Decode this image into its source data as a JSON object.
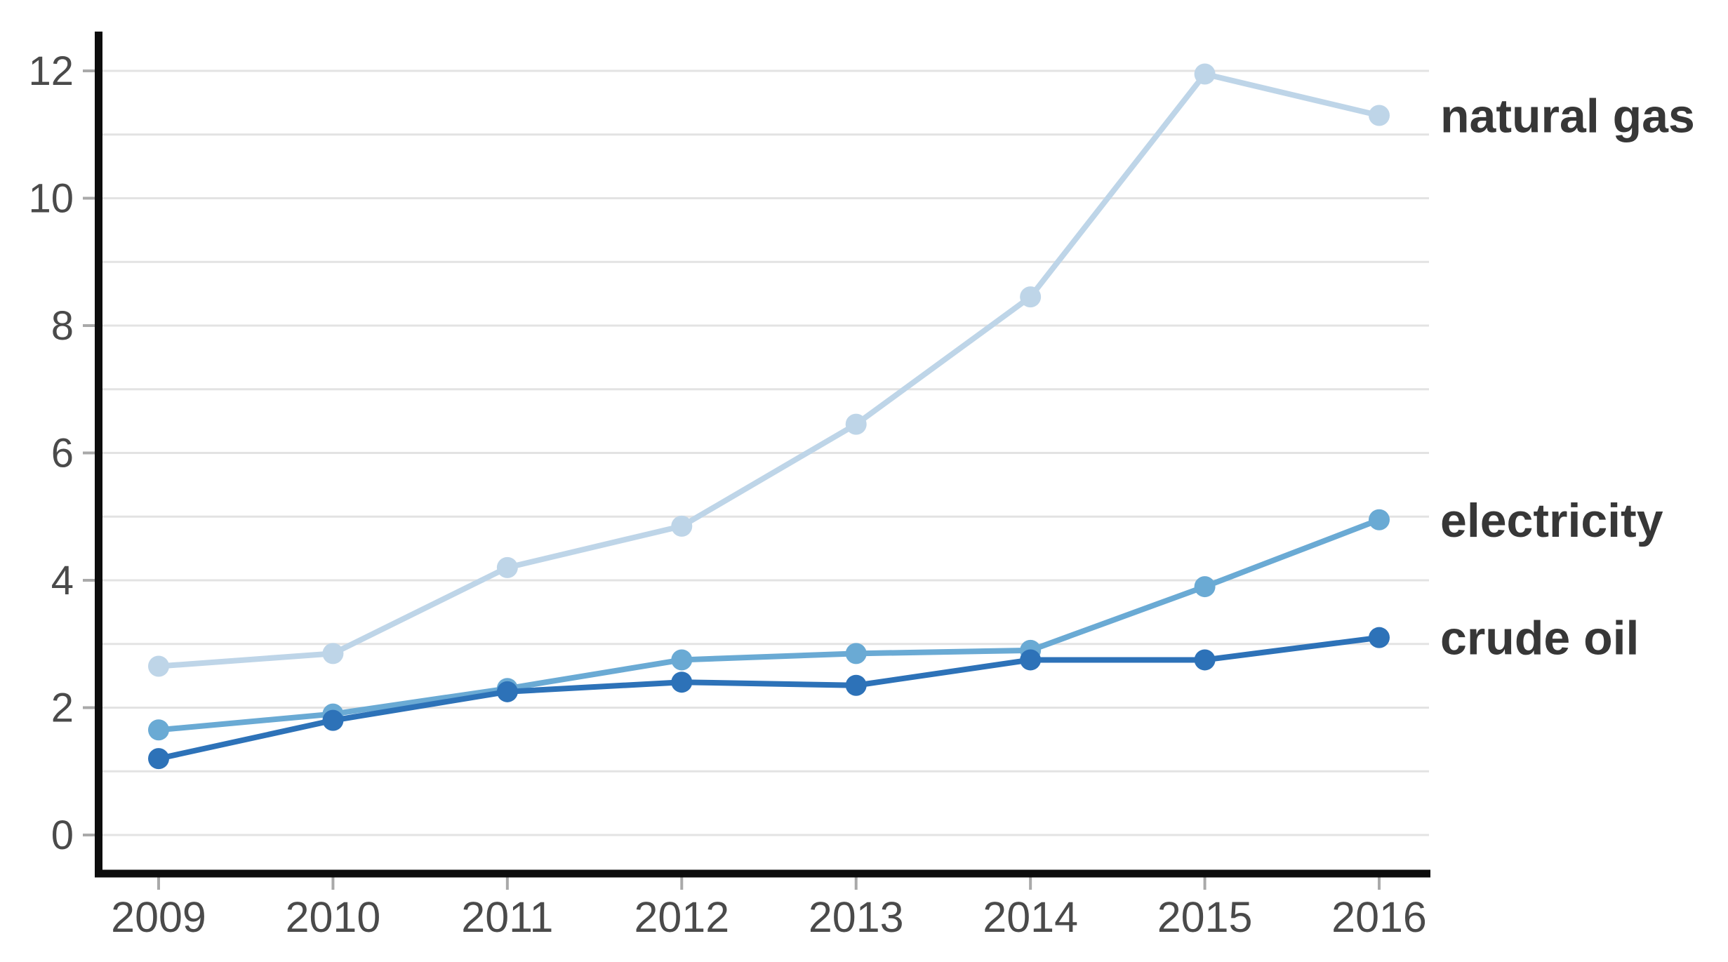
{
  "chart_data": {
    "type": "line",
    "title": "",
    "xlabel": "",
    "ylabel": "",
    "x": [
      2009,
      2010,
      2011,
      2012,
      2013,
      2014,
      2015,
      2016
    ],
    "x_tick_labels": [
      "2009",
      "2010",
      "2011",
      "2012",
      "2013",
      "2014",
      "2015",
      "2016"
    ],
    "ylim": [
      0,
      12
    ],
    "y_labeled_ticks": [
      0,
      2,
      4,
      6,
      8,
      10,
      12
    ],
    "y_gridlines": [
      0,
      1,
      2,
      3,
      4,
      5,
      6,
      7,
      8,
      9,
      10,
      11,
      12
    ],
    "grid": true,
    "legend_position": "right-end-of-line-labels",
    "marker": "circle",
    "series": [
      {
        "name": "natural gas",
        "color": "#bed5e8",
        "values": [
          2.65,
          2.85,
          4.2,
          4.85,
          6.45,
          8.45,
          11.95,
          11.3
        ]
      },
      {
        "name": "electricity",
        "color": "#6aaad4",
        "values": [
          1.65,
          1.9,
          2.3,
          2.75,
          2.85,
          2.9,
          3.9,
          4.95
        ]
      },
      {
        "name": "crude oil",
        "color": "#2d72b8",
        "values": [
          1.2,
          1.8,
          2.25,
          2.4,
          2.35,
          2.75,
          2.75,
          3.1
        ]
      }
    ]
  },
  "styles": {
    "background": "#ffffff",
    "grid_color": "#e3e3e3",
    "tick_color": "#a9a9a9",
    "axis_color": "#0d0d0d",
    "tick_label_color": "#4a4a4a",
    "series_label_color": "#373737"
  }
}
